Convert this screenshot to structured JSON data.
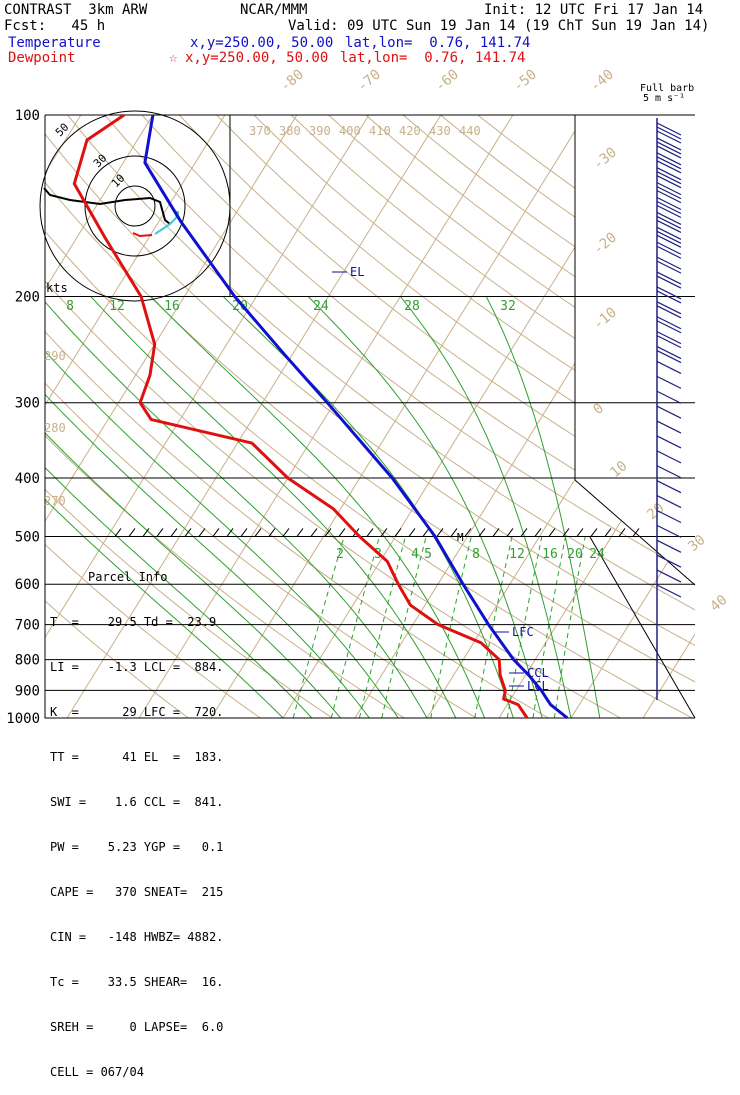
{
  "header": {
    "model": "CONTRAST  3km ARW",
    "center": "NCAR/MMM",
    "init": "Init: 12 UTC Fri 17 Jan 14",
    "fcst": "Fcst:   45 h",
    "valid": "Valid: 09 UTC Sun 19 Jan 14 (19 ChT Sun 19 Jan 14)",
    "temp_label": "Temperature",
    "temp_xy": "x,y=250.00, 50.00",
    "temp_latlon": "lat,lon=  0.76, 141.74",
    "dew_label": "Dewpoint",
    "dew_xy": "x,y=250.00, 50.00",
    "dew_latlon": "lat,lon=  0.76, 141.74",
    "star": "☆"
  },
  "barb_legend": {
    "line1": "Full barb",
    "line2": "5 m s⁻¹"
  },
  "parcel_info": {
    "title": "Parcel Info",
    "rows": [
      "T  =    29.5 Td =  23.9",
      "LI =    -1.3 LCL =  884.",
      "K  =      29 LFC =  720.",
      "TT =      41 EL  =  183.",
      "SWI =    1.6 CCL =  841.",
      "PW =    5.23 YGP =   0.1",
      "CAPE =   370 SNEAT=  215",
      "CIN =   -148 HWBZ= 4882.",
      "Tc =    33.5 SHEAR=  16.",
      "SREH =     0 LAPSE=  6.0",
      "CELL = 067/04"
    ]
  },
  "chart_data": {
    "type": "skew-t",
    "pressure_ticks": [
      "100",
      "200",
      "300",
      "400",
      "500",
      "600",
      "700",
      "800",
      "900",
      "1000"
    ],
    "isotherm_labels": [
      "-80",
      "-70",
      "-60",
      "-50",
      "-40",
      "-30",
      "-20",
      "-10",
      "0",
      "10",
      "20",
      "30",
      "40"
    ],
    "theta_labels": [
      "370",
      "380",
      "390",
      "400",
      "410",
      "420",
      "430",
      "440"
    ],
    "theta_side_labels": [
      "290",
      "280",
      "270"
    ],
    "mixing_ratio_upper": [
      "8",
      "12",
      "16",
      "20",
      "24",
      "28",
      "32"
    ],
    "mixing_ratio_lower": [
      "2",
      "3",
      "4",
      "5",
      "8",
      "12",
      "16",
      "20",
      "24"
    ],
    "level_labels": {
      "el": "EL",
      "lfc": "LFC",
      "ccl": "CCL",
      "lcl": "LCL",
      "marker": "M"
    },
    "hodograph": {
      "speed_unit": "kts",
      "ring_labels": [
        "10",
        "30",
        "50"
      ]
    },
    "temperature": {
      "name": "Temperature",
      "color": "#1010d0",
      "points": [
        [
          1000,
          29.5
        ],
        [
          950,
          26.0
        ],
        [
          900,
          23.5
        ],
        [
          850,
          20.5
        ],
        [
          800,
          17.0
        ],
        [
          700,
          10.5
        ],
        [
          600,
          3.5
        ],
        [
          500,
          -4.5
        ],
        [
          400,
          -15.5
        ],
        [
          300,
          -31.0
        ],
        [
          250,
          -41.0
        ],
        [
          200,
          -53.0
        ],
        [
          150,
          -67.0
        ],
        [
          120,
          -77.0
        ],
        [
          100,
          -80.0
        ]
      ]
    },
    "dewpoint": {
      "name": "Dewpoint",
      "color": "#e01010",
      "points": [
        [
          1000,
          23.9
        ],
        [
          950,
          21.5
        ],
        [
          930,
          19.0
        ],
        [
          900,
          18.5
        ],
        [
          850,
          16.5
        ],
        [
          800,
          15.0
        ],
        [
          750,
          11.0
        ],
        [
          700,
          3.5
        ],
        [
          650,
          -2.0
        ],
        [
          600,
          -5.5
        ],
        [
          550,
          -9.0
        ],
        [
          500,
          -15.0
        ],
        [
          450,
          -21.0
        ],
        [
          400,
          -30.0
        ],
        [
          350,
          -38.0
        ],
        [
          320,
          -54.0
        ],
        [
          300,
          -57.0
        ],
        [
          270,
          -58.0
        ],
        [
          240,
          -60.0
        ],
        [
          200,
          -66.0
        ],
        [
          160,
          -76.0
        ],
        [
          130,
          -85.0
        ],
        [
          110,
          -87.0
        ],
        [
          100,
          -84.0
        ]
      ]
    },
    "wind_barbs": {
      "color": "#202080",
      "levels": [
        125,
        150,
        175,
        200,
        225,
        250,
        275,
        300,
        325,
        350,
        375,
        400,
        425,
        450,
        475,
        500,
        525,
        550,
        575,
        600,
        625,
        650,
        675,
        700,
        725,
        750,
        775,
        800,
        825,
        850,
        875,
        900
      ]
    }
  }
}
